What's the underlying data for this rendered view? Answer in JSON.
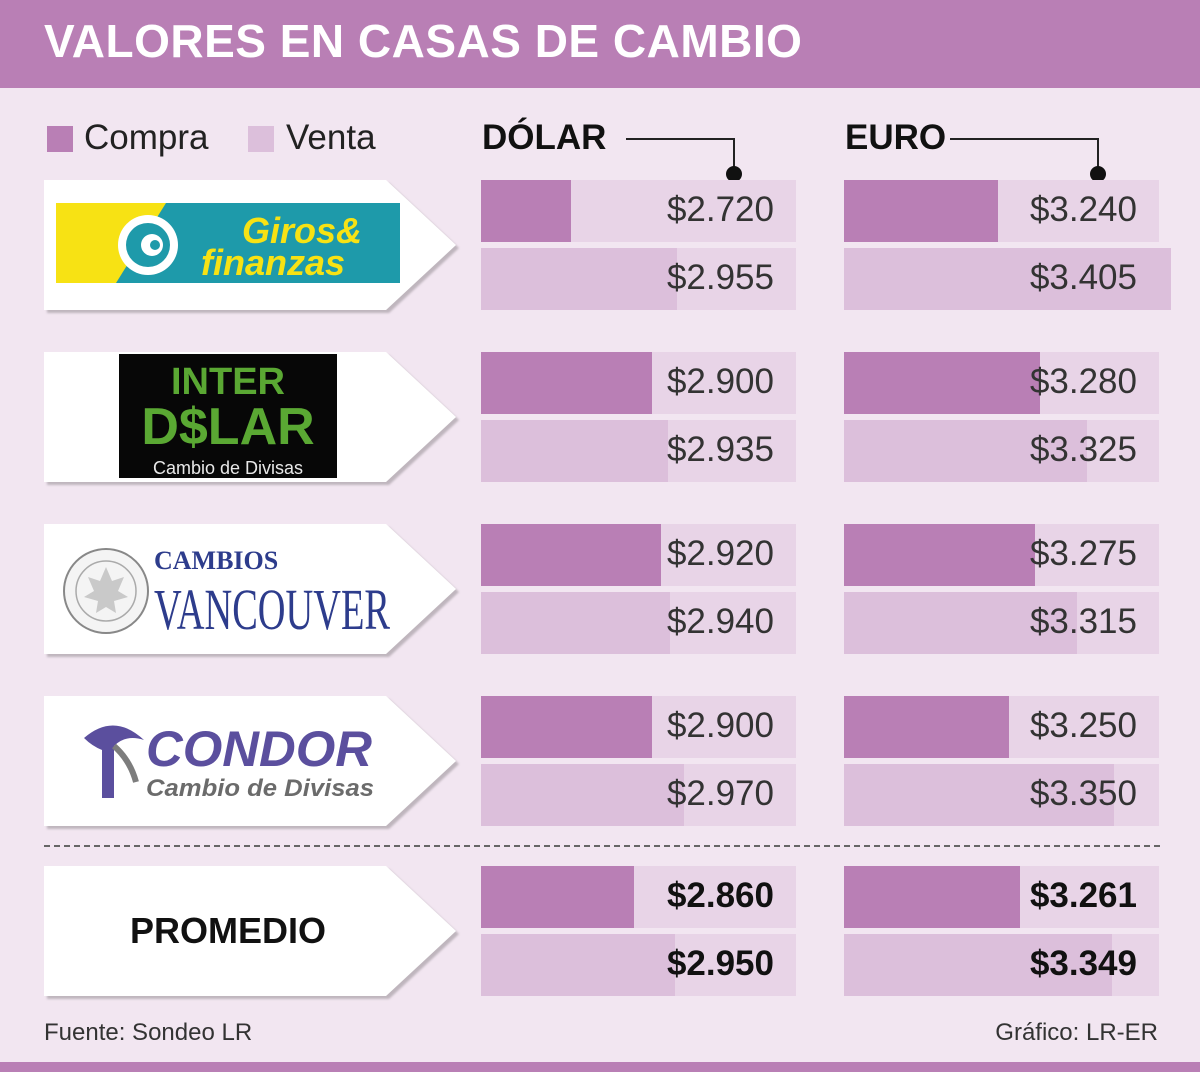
{
  "title": "VALORES EN CASAS DE CAMBIO",
  "legend": [
    {
      "label": "Compra",
      "color": "#b97fb5"
    },
    {
      "label": "Venta",
      "color": "#dcbfdb"
    }
  ],
  "columns": [
    {
      "label": "DÓLAR"
    },
    {
      "label": "EURO"
    }
  ],
  "houses": [
    {
      "logo": "giros-finanzas-logo",
      "name_line1": "Giros&",
      "name_line2": "finanzas"
    },
    {
      "logo": "interdolar-logo",
      "name_line1": "INTER",
      "name_line2": "D$LAR",
      "tagline": "Cambio de Divisas"
    },
    {
      "logo": "cambios-vancouver-logo",
      "name_line1": "CAMBIOS",
      "name_line2": "VANCOUVER",
      "seal_text": "CAMBIOS VANCOUVER LTDA."
    },
    {
      "logo": "condor-logo",
      "name_line1": "CONDOR",
      "name_line2": "Cambio de Divisas"
    }
  ],
  "promedio": {
    "label": "PROMEDIO"
  },
  "chart_data": {
    "type": "bar",
    "title": "VALORES EN CASAS DE CAMBIO",
    "categories": [
      "Giros & finanzas",
      "Interdólar",
      "Cambios Vancouver",
      "Condor",
      "PROMEDIO"
    ],
    "series": [
      {
        "name": "Compra",
        "currency": "DÓLAR",
        "values": [
          2720,
          2900,
          2920,
          2900,
          2860
        ],
        "labels": [
          "$2.720",
          "$2.900",
          "$2.920",
          "$2.900",
          "$2.860"
        ]
      },
      {
        "name": "Venta",
        "currency": "DÓLAR",
        "values": [
          2955,
          2935,
          2940,
          2970,
          2950
        ],
        "labels": [
          "$2.955",
          "$2.935",
          "$2.940",
          "$2.970",
          "$2.950"
        ]
      },
      {
        "name": "Compra",
        "currency": "EURO",
        "values": [
          3240,
          3280,
          3275,
          3250,
          3261
        ],
        "labels": [
          "$3.240",
          "$3.280",
          "$3.275",
          "$3.250",
          "$3.261"
        ]
      },
      {
        "name": "Venta",
        "currency": "EURO",
        "values": [
          3405,
          3325,
          3315,
          3350,
          3349
        ],
        "labels": [
          "$3.405",
          "$3.325",
          "$3.315",
          "$3.350",
          "$3.349"
        ]
      }
    ],
    "grid": false,
    "legend_position": "top-left"
  },
  "footer": {
    "source": "Fuente: Sondeo LR",
    "credit": "Gráfico: LR-ER"
  }
}
